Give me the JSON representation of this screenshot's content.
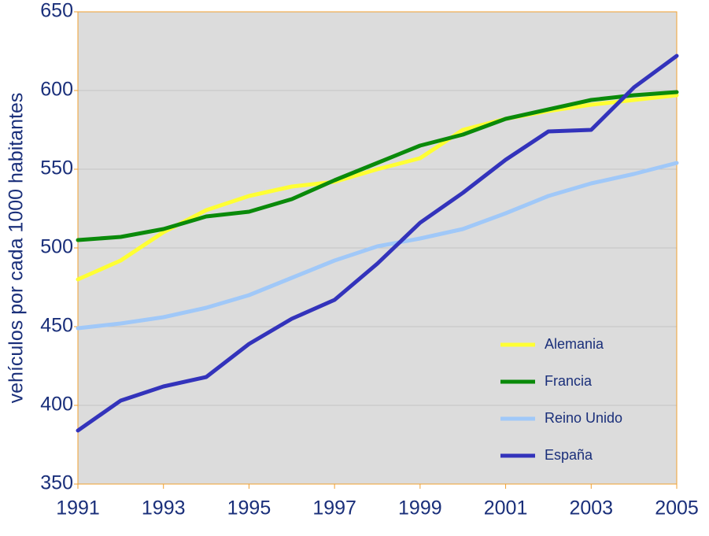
{
  "chart_data": {
    "type": "line",
    "y_label": "vehículos por cada 1000 habitantes",
    "x": [
      1991,
      1992,
      1993,
      1994,
      1995,
      1996,
      1997,
      1998,
      1999,
      2000,
      2001,
      2002,
      2003,
      2004,
      2005
    ],
    "series": [
      {
        "name": "Alemania",
        "color": "#ffff33",
        "values": [
          480,
          492,
          510,
          524,
          533,
          539,
          542,
          550,
          557,
          575,
          582,
          587,
          591,
          594,
          597
        ]
      },
      {
        "name": "Francia",
        "color": "#0a8a0a",
        "values": [
          505,
          507,
          512,
          520,
          523,
          531,
          543,
          554,
          565,
          572,
          582,
          588,
          594,
          597,
          599
        ]
      },
      {
        "name": "Reino Unido",
        "color": "#a0c8f8",
        "values": [
          449,
          452,
          456,
          462,
          470,
          481,
          492,
          501,
          506,
          512,
          522,
          533,
          541,
          547,
          554
        ]
      },
      {
        "name": "España",
        "color": "#3333bb",
        "values": [
          384,
          403,
          412,
          418,
          439,
          455,
          467,
          490,
          516,
          535,
          556,
          574,
          575,
          602,
          622
        ]
      }
    ],
    "xlim": [
      1991,
      2005
    ],
    "xticks": [
      1991,
      1993,
      1995,
      1997,
      1999,
      2001,
      2003,
      2005
    ],
    "ylim": [
      350,
      650
    ],
    "yticks": [
      350,
      400,
      450,
      500,
      550,
      600,
      650
    ],
    "grid": true,
    "legend": "bottom-right"
  }
}
